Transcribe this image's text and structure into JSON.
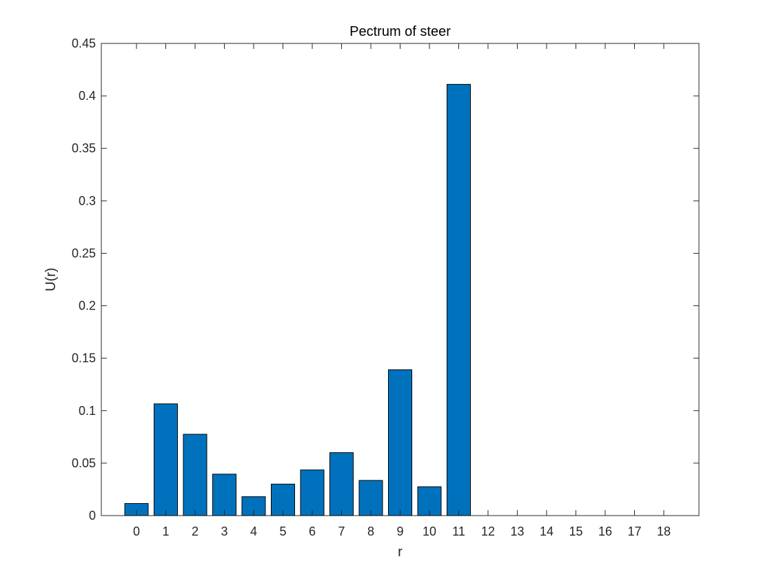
{
  "chart_data": {
    "type": "bar",
    "title": "Pectrum of steer",
    "xlabel": "r",
    "ylabel": "U(r)",
    "categories": [
      "0",
      "1",
      "2",
      "3",
      "4",
      "5",
      "6",
      "7",
      "8",
      "9",
      "10",
      "11",
      "12",
      "13",
      "14",
      "15",
      "16",
      "17",
      "18"
    ],
    "values": [
      0.0115,
      0.1065,
      0.0775,
      0.0395,
      0.018,
      0.03,
      0.0435,
      0.06,
      0.0335,
      0.139,
      0.0275,
      0.411,
      0,
      0,
      0,
      0,
      0,
      0,
      0
    ],
    "xlim": [
      -1.2,
      19.2
    ],
    "ylim": [
      0,
      0.45
    ],
    "yticks": [
      0,
      0.05,
      0.1,
      0.15,
      0.2,
      0.25,
      0.3,
      0.35,
      0.4,
      0.45
    ],
    "ytick_labels": [
      "0",
      "0.05",
      "0.1",
      "0.15",
      "0.2",
      "0.25",
      "0.3",
      "0.35",
      "0.4",
      "0.45"
    ],
    "grid": false,
    "legend": "none",
    "colors": {
      "bar_fill": "#0072BD",
      "bar_edge": "#000000",
      "axes": "#262626",
      "background": "#ffffff"
    }
  }
}
